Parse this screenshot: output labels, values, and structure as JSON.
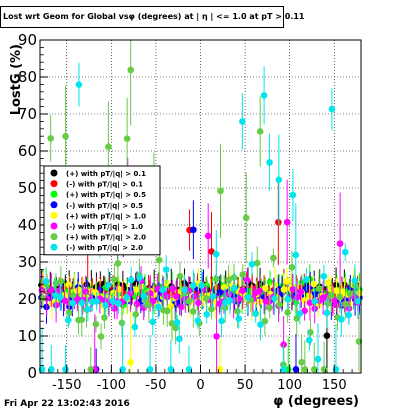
{
  "title": "Lost wrt Geom for Global vsφ (degrees) at | η | <= 1.0 at pT > 0.11",
  "footer": "Fri Apr 22 13:02:43 2016",
  "chart_data": {
    "type": "scatter",
    "xlabel": "φ (degrees)",
    "ylabel": "LostG (%)",
    "xlim": [
      -180,
      180
    ],
    "ylim": [
      0,
      90
    ],
    "xticks": [
      -150,
      -100,
      -50,
      0,
      50,
      100,
      150
    ],
    "yticks": [
      0,
      10,
      20,
      30,
      40,
      50,
      60,
      70,
      80,
      90
    ],
    "grid": true,
    "legend_position": "left-middle",
    "series": [
      {
        "name": "(+) with pT/|q| > 0.1",
        "color": "#000000",
        "marker": "circle",
        "base": 23,
        "spread": 1.5,
        "outlier_rate": 0.02
      },
      {
        "name": "(-) with pT/|q| > 0.1",
        "color": "#ff0000",
        "marker": "circle",
        "base": 22,
        "spread": 1.5,
        "outlier_rate": 0.02
      },
      {
        "name": "(+) with pT/|q| > 0.5",
        "color": "#00ff00",
        "marker": "circle",
        "base": 22,
        "spread": 2.5,
        "outlier_rate": 0.04
      },
      {
        "name": "(-) with pT/|q| > 0.5",
        "color": "#0000ff",
        "marker": "circle",
        "base": 21,
        "spread": 2.5,
        "outlier_rate": 0.04
      },
      {
        "name": "(+) with pT/|q| > 1.0",
        "color": "#ffff00",
        "marker": "circle",
        "base": 21,
        "spread": 3.5,
        "outlier_rate": 0.08
      },
      {
        "name": "(-) with pT/|q| > 1.0",
        "color": "#ff00ff",
        "marker": "circle",
        "base": 20,
        "spread": 4,
        "outlier_rate": 0.08
      },
      {
        "name": "(+) with pT/|q| > 2.0",
        "color": "#66cc44",
        "marker": "circle",
        "base": 20,
        "spread": 9,
        "outlier_rate": 0.22
      },
      {
        "name": "(-) with pT/|q| > 2.0",
        "color": "#00e5ee",
        "marker": "circle",
        "base": 20,
        "spread": 9,
        "outlier_rate": 0.22
      }
    ]
  }
}
